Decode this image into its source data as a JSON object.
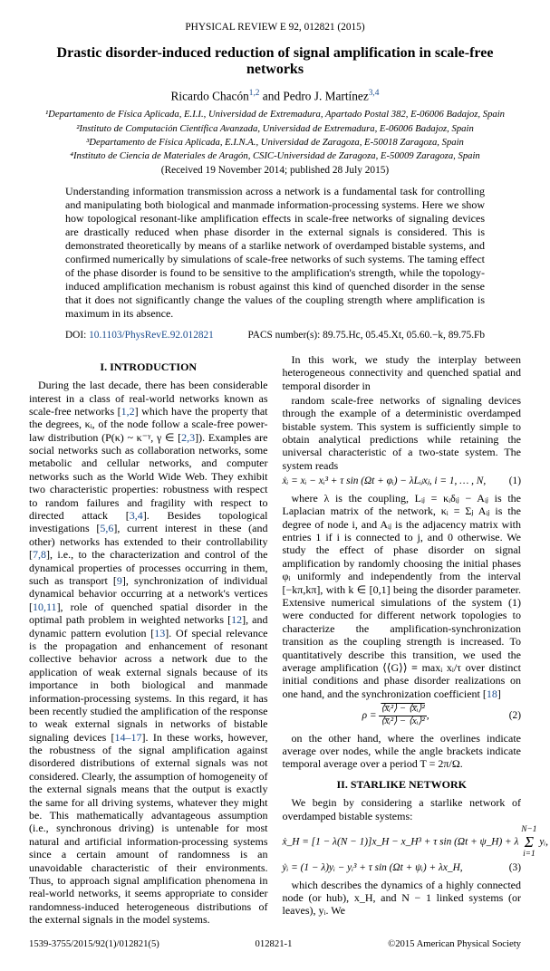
{
  "journal_header": "PHYSICAL REVIEW E 92, 012821 (2015)",
  "title": "Drastic disorder-induced reduction of signal amplification in scale-free networks",
  "authors_html": "Ricardo Chacón<sup class='ref'>1,2</sup> and Pedro J. Martínez<sup class='ref'>3,4</sup>",
  "affiliations": [
    "¹Departamento de Física Aplicada, E.I.I., Universidad de Extremadura, Apartado Postal 382, E-06006 Badajoz, Spain",
    "²Instituto de Computación Científica Avanzada, Universidad de Extremadura, E-06006 Badajoz, Spain",
    "³Departamento de Física Aplicada, E.I.N.A., Universidad de Zaragoza, E-50018 Zaragoza, Spain",
    "⁴Instituto de Ciencia de Materiales de Aragón, CSIC-Universidad de Zaragoza, E-50009 Zaragoza, Spain"
  ],
  "received": "(Received 19 November 2014; published 28 July 2015)",
  "abstract": "Understanding information transmission across a network is a fundamental task for controlling and manipulating both biological and manmade information-processing systems. Here we show how topological resonant-like amplification effects in scale-free networks of signaling devices are drastically reduced when phase disorder in the external signals is considered. This is demonstrated theoretically by means of a starlike network of overdamped bistable systems, and confirmed numerically by simulations of scale-free networks of such systems. The taming effect of the phase disorder is found to be sensitive to the amplification's strength, while the topology-induced amplification mechanism is robust against this kind of quenched disorder in the sense that it does not significantly change the values of the coupling strength where amplification is maximum in its absence.",
  "doi_label": "DOI: ",
  "doi_link": "10.1103/PhysRevE.92.012821",
  "pacs": "PACS number(s): 89.75.Hc, 05.45.Xt, 05.60.−k, 89.75.Fb",
  "sections": {
    "intro_head": "I.  INTRODUCTION",
    "starlike_head": "II.  STARLIKE NETWORK"
  },
  "body": {
    "p1a": "During the last decade, there has been considerable interest in a class of real-world networks known as scale-free networks [",
    "p1b": "] which have the property that the degrees, κᵢ, of the node follow a scale-free power-law distribution (P(κ) ~ κ⁻ᵞ, γ ∈ [",
    "p1c": "]). Examples are social networks such as collaboration networks, some metabolic and cellular networks, and computer networks such as the World Wide Web. They exhibit two characteristic properties: robustness with respect to random failures and fragility with respect to directed attack [",
    "p1d": "]. Besides topological investigations [",
    "p1e": "], current interest in these (and other) networks has extended to their controllability [",
    "p1f": "], i.e., to the characterization and control of the dynamical properties of processes occurring in them, such as transport [",
    "p1g": "], synchronization of individual dynamical behavior occurring at a network's vertices [",
    "p1h": "], role of quenched spatial disorder in the optimal path problem in weighted networks [",
    "p1i": "], and dynamic pattern evolution [",
    "p1j": "]. Of special relevance is the propagation and enhancement of resonant collective behavior across a network due to the application of weak external signals because of its importance in both biological and manmade information-processing systems. In this regard, it has been recently studied the amplification of the response to weak external signals in networks of bistable signaling devices [",
    "p1k": "]. In these works, however, the robustness of the signal amplification against disordered distributions of external signals was not considered. Clearly, the assumption of homogeneity of the external signals means that the output is exactly the same for all driving systems, whatever they might be. This mathematically advantageous assumption (i.e., synchronous driving) is untenable for most natural and artificial information-processing systems since a certain amount of randomness is an unavoidable characteristic of their environments. Thus, to approach signal amplification phenomena in real-world networks, it seems appropriate to consider randomness-induced heterogeneous distributions of the external signals in the model systems.",
    "p2": "In this work, we study the interplay between heterogeneous connectivity and quenched spatial and temporal disorder in",
    "p3a": "random scale-free networks of signaling devices through the example of a deterministic overdamped bistable system. This system is sufficiently simple to obtain analytical predictions while retaining the universal characteristic of a two-state system. The system reads",
    "p3b": "where λ is the coupling, Lᵢⱼ = κᵢδᵢⱼ − Aᵢⱼ is the Laplacian matrix of the network, κᵢ = Σⱼ Aᵢⱼ is the degree of node i, and Aᵢⱼ is the adjacency matrix with entries 1 if i is connected to j, and 0 otherwise. We study the effect of phase disorder on signal amplification by randomly choosing the initial phases φᵢ uniformly and independently from the interval [−kπ,kπ], with k ∈ [0,1] being the disorder parameter. Extensive numerical simulations of the system (1) were conducted for different network topologies to characterize the amplification-synchronization transition as the coupling strength is increased. To quantitatively describe this transition, we used the average amplification ⟨⟨G⟩⟩ ≡ maxᵢ xᵢ/τ over distinct initial conditions and phase disorder realizations on one hand, and the synchronization coefficient [",
    "p3c": "]",
    "p4": "on the other hand, where the overlines indicate average over nodes, while the angle brackets indicate temporal average over a period T = 2π/Ω.",
    "p5": "We begin by considering a starlike network of overdamped bistable systems:",
    "p6": "which describes the dynamics of a highly connected node (or hub), x_H, and N − 1 linked systems (or leaves), yᵢ. We"
  },
  "refs": {
    "r12": "1,2",
    "r23": "2,3",
    "r34": "3,4",
    "r56": "5,6",
    "r78": "7,8",
    "r9": "9",
    "r1011": "10,11",
    "r12b": "12",
    "r13": "13",
    "r1417": "14–17",
    "r18": "18"
  },
  "equations": {
    "eq1": "ẋᵢ = xᵢ − xᵢ³ + τ sin (Ωt + φᵢ) − λLᵢⱼxⱼ,  i = 1, … , N,",
    "eq1num": "(1)",
    "eq2num": "(2)",
    "eq3a": "ẋ_H = [1 − λ(N − 1)]x_H − x_H³ + τ sin (Ωt + ψ_H) + λ",
    "eq3b": "ẏᵢ = (1 − λ)yᵢ − yᵢ³ + τ sin (Ωt + ψᵢ) + λx_H,",
    "eq3num": "(3)",
    "rho_lhs": "ρ =",
    "rho_num": "⟨x̅ᵢ²⟩ − ⟨x̅ᵢ⟩²",
    "rho_den": "⟨x̅ᵢ²⟩ − ⟨xᵢ⟩²",
    "sum": "Σ",
    "sum_top": "N−1",
    "sum_bot": "i=1",
    "sum_term": "yᵢ,"
  },
  "footer": {
    "left": "1539-3755/2015/92(1)/012821(5)",
    "center": "012821-1",
    "right": "©2015 American Physical Society"
  }
}
